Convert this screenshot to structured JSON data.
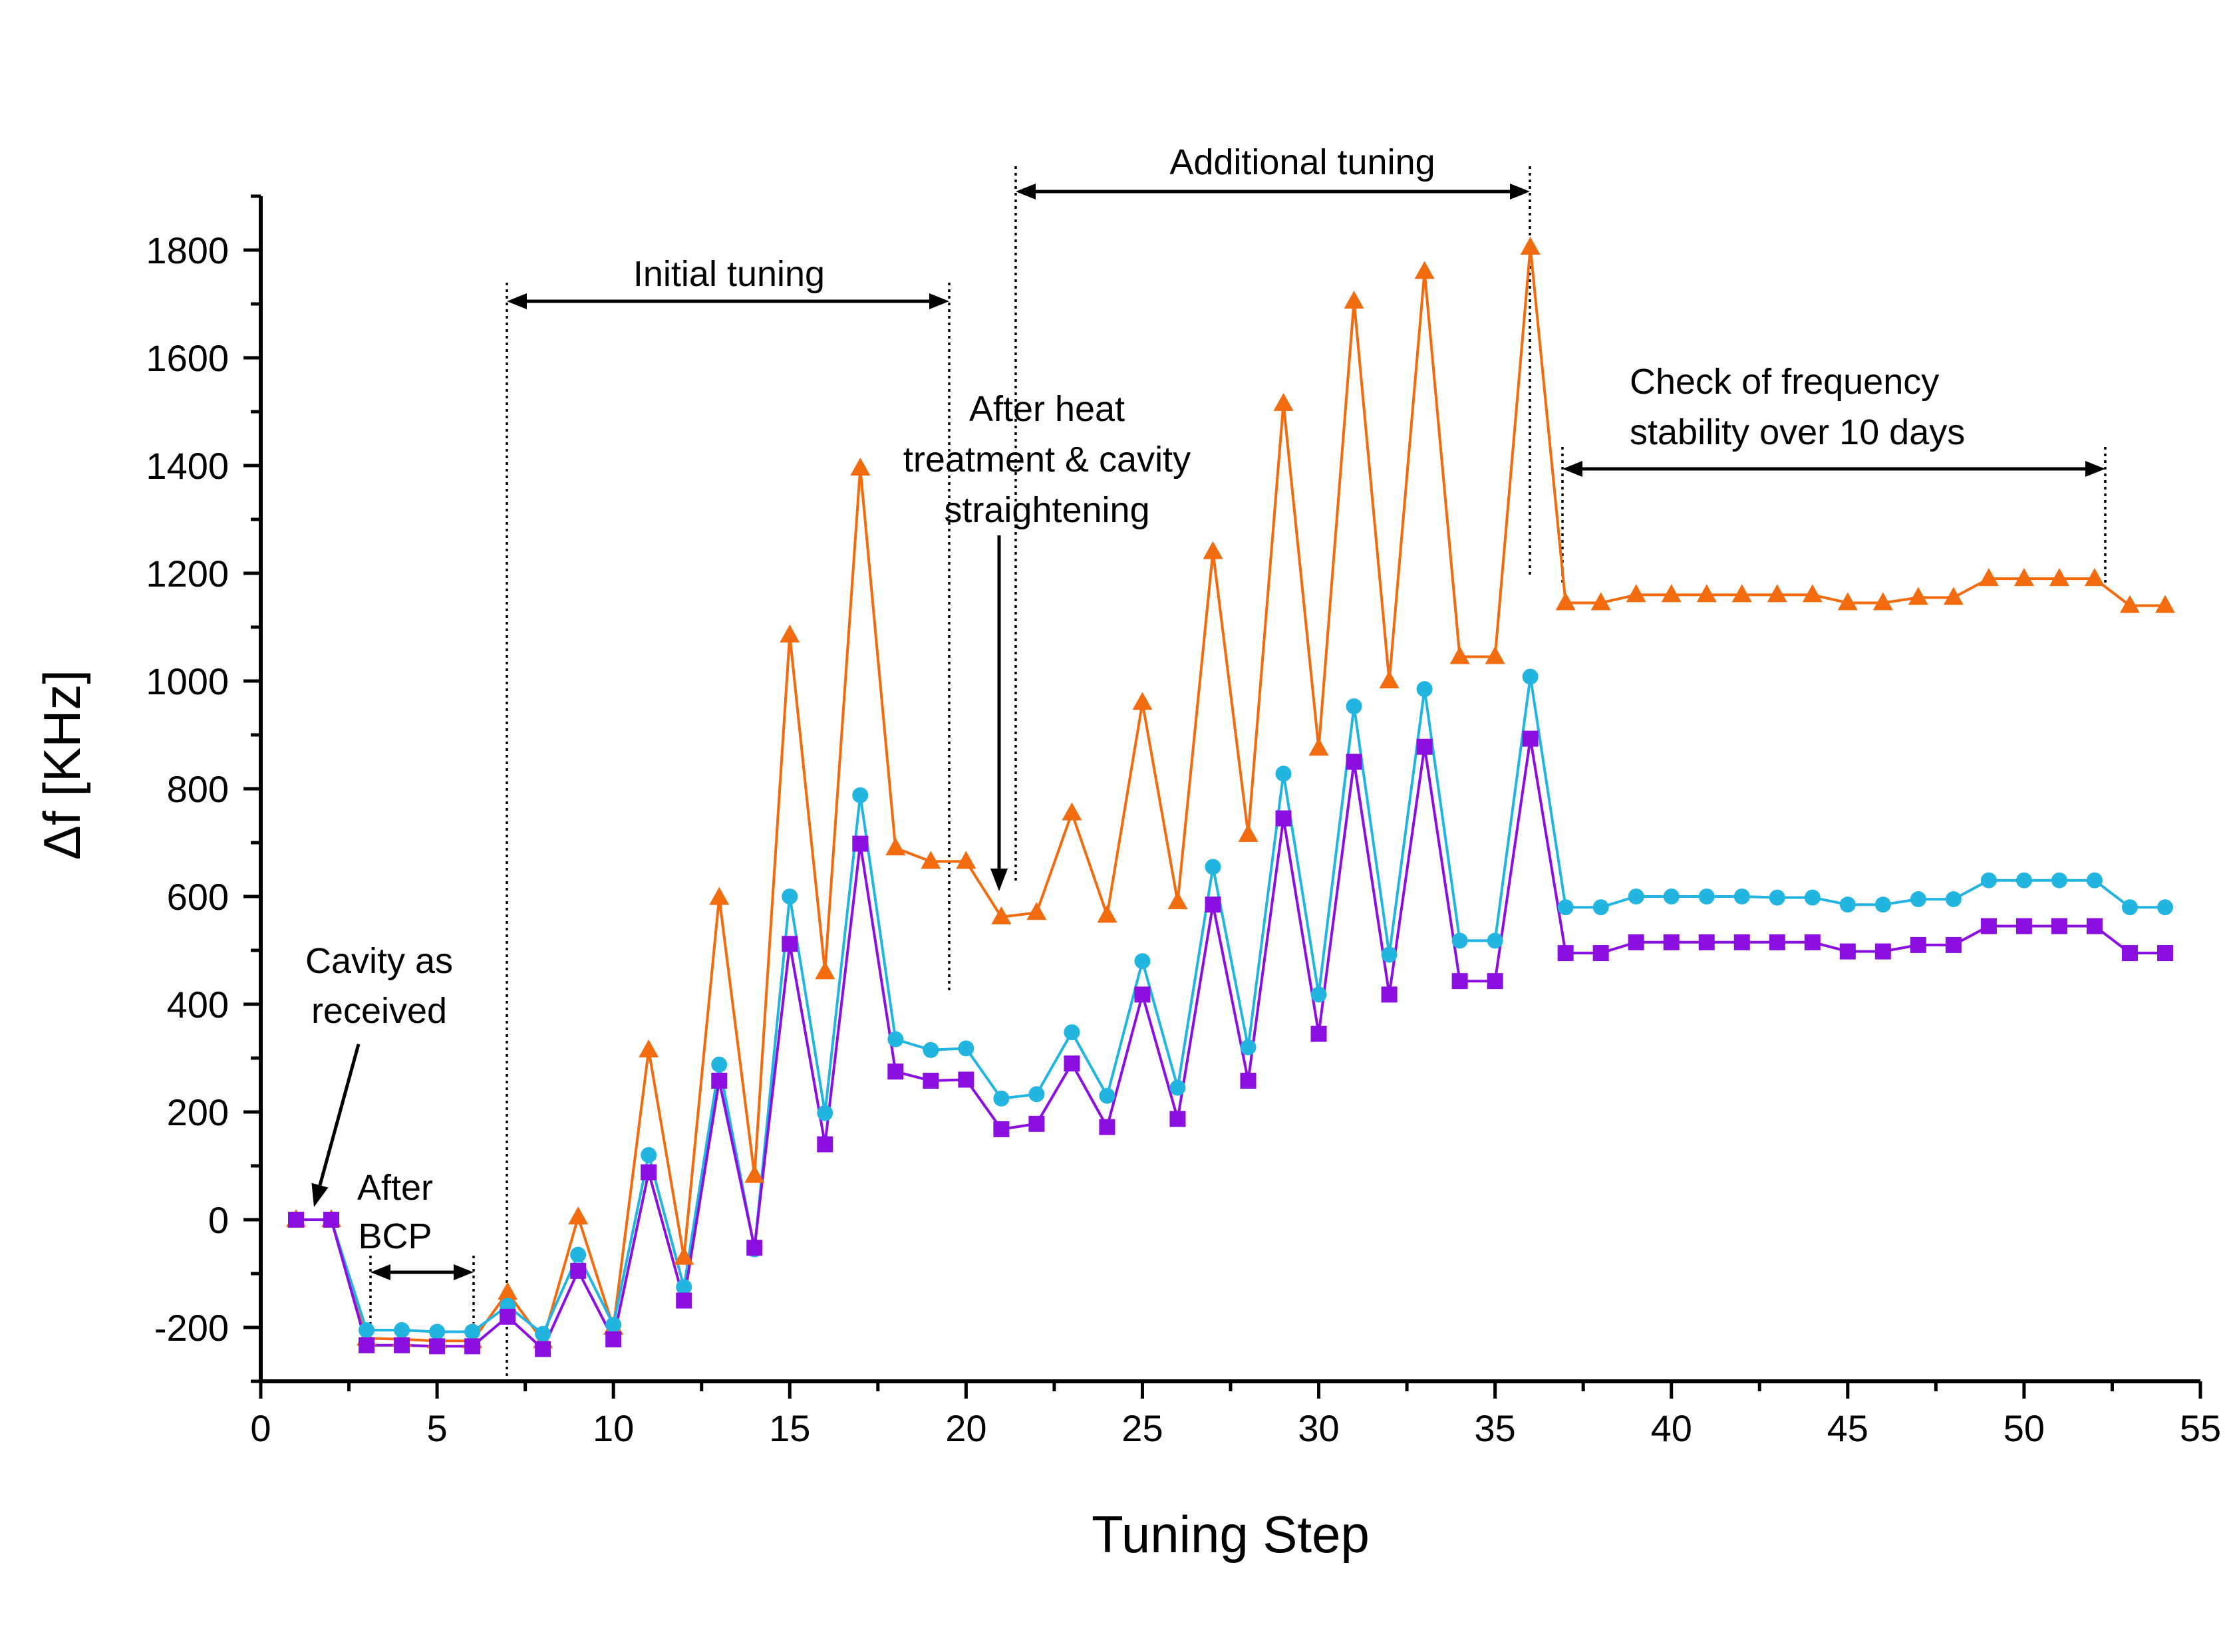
{
  "chart_data": {
    "type": "line",
    "title": "",
    "xlabel": "Tuning Step",
    "ylabel": "Δf [KHz]",
    "xlim": [
      0,
      55
    ],
    "ylim": [
      -300,
      1900
    ],
    "xticks": [
      0,
      5,
      10,
      15,
      20,
      25,
      30,
      35,
      40,
      45,
      50,
      55
    ],
    "yticks": [
      -200,
      0,
      200,
      400,
      600,
      800,
      1000,
      1200,
      1400,
      1600,
      1800
    ],
    "x": [
      1,
      2,
      3,
      4,
      5,
      6,
      7,
      8,
      9,
      10,
      11,
      12,
      13,
      14,
      15,
      16,
      17,
      18,
      19,
      20,
      21,
      22,
      23,
      24,
      25,
      26,
      27,
      28,
      29,
      30,
      31,
      32,
      33,
      34,
      35,
      36,
      37,
      38,
      39,
      40,
      41,
      42,
      43,
      44,
      45,
      46,
      47,
      48,
      49,
      50,
      51,
      52,
      53,
      54
    ],
    "series": [
      {
        "marker": "triangle",
        "color": "#F26B0F",
        "values": [
          0,
          0,
          -220,
          -222,
          -225,
          -225,
          -135,
          -225,
          5,
          -200,
          315,
          -70,
          598,
          82,
          1085,
          460,
          1395,
          690,
          665,
          665,
          562,
          570,
          755,
          565,
          960,
          590,
          1240,
          715,
          1515,
          875,
          1705,
          1000,
          1760,
          1045,
          1045,
          1805,
          1145,
          1145,
          1160,
          1160,
          1160,
          1160,
          1160,
          1160,
          1145,
          1145,
          1155,
          1155,
          1190,
          1190,
          1190,
          1190,
          1140,
          1140
        ]
      },
      {
        "marker": "circle",
        "color": "#22B5E0",
        "values": [
          0,
          0,
          -205,
          -205,
          -208,
          -208,
          -160,
          -212,
          -65,
          -195,
          120,
          -125,
          288,
          -55,
          600,
          198,
          788,
          335,
          315,
          318,
          225,
          233,
          348,
          230,
          480,
          245,
          655,
          320,
          828,
          418,
          953,
          492,
          985,
          518,
          518,
          1008,
          580,
          580,
          600,
          600,
          600,
          600,
          598,
          598,
          585,
          585,
          595,
          595,
          630,
          630,
          630,
          630,
          580,
          580
        ]
      },
      {
        "marker": "square",
        "color": "#8A0FE0",
        "values": [
          0,
          0,
          -233,
          -233,
          -235,
          -235,
          -180,
          -240,
          -95,
          -222,
          88,
          -150,
          258,
          -52,
          512,
          140,
          698,
          275,
          258,
          260,
          168,
          178,
          290,
          172,
          418,
          187,
          585,
          258,
          745,
          345,
          850,
          418,
          878,
          443,
          443,
          893,
          495,
          495,
          515,
          515,
          515,
          515,
          515,
          515,
          498,
          498,
          510,
          510,
          545,
          545,
          545,
          545,
          495,
          495
        ]
      }
    ],
    "annotations": {
      "received_line1": "Cavity as",
      "received_line2": "received",
      "bcp_line1": "After",
      "bcp_line2": "BCP",
      "initial": "Initial tuning",
      "heat_line1": "After heat",
      "heat_line2": "treatment & cavity",
      "heat_line3": "straightening",
      "additional": "Additional tuning",
      "stability_line1": "Check of frequency",
      "stability_line2": "stability over 10 days"
    }
  }
}
